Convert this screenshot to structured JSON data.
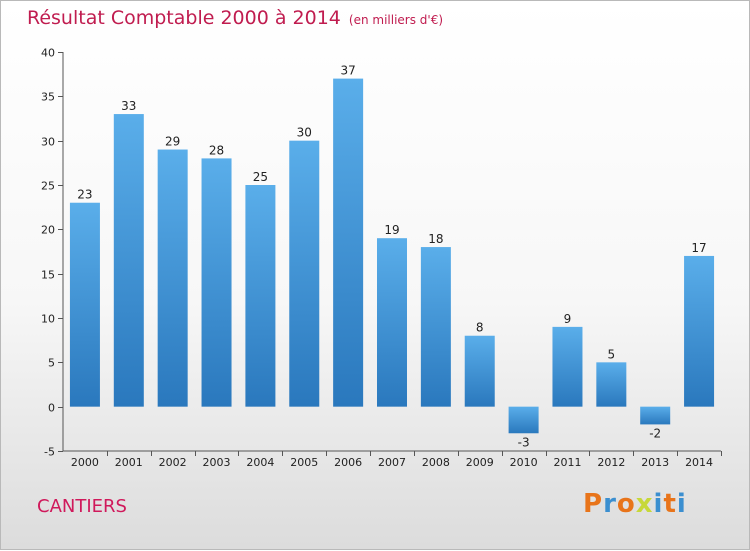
{
  "title": "Résultat Comptable 2000 à 2014",
  "unit": "(en milliers d'€)",
  "commune": "CANTIERS",
  "logo": "Proxiti",
  "logo_colors": [
    "#e8741a",
    "#3b8fd0",
    "#e8741a",
    "#c7d83a",
    "#3b8fd0",
    "#e8741a",
    "#3b8fd0"
  ],
  "chart_data": {
    "type": "bar",
    "title": "Résultat Comptable 2000 à 2014",
    "xlabel": "",
    "ylabel": "",
    "categories": [
      "2000",
      "2001",
      "2002",
      "2003",
      "2004",
      "2005",
      "2006",
      "2007",
      "2008",
      "2009",
      "2010",
      "2011",
      "2012",
      "2013",
      "2014"
    ],
    "values": [
      23,
      33,
      29,
      28,
      25,
      30,
      37,
      19,
      18,
      8,
      -3,
      9,
      5,
      -2,
      17
    ],
    "ylim": [
      -5,
      40
    ],
    "yticks": [
      -5,
      0,
      5,
      10,
      15,
      20,
      25,
      30,
      35,
      40
    ],
    "grid": false,
    "bar_color_top": "#5aaeea",
    "bar_color_bottom": "#2a78bd"
  }
}
